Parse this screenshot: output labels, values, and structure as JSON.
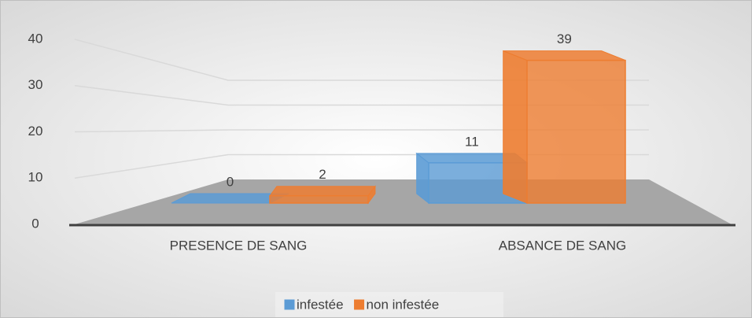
{
  "chart_data": {
    "type": "bar3d",
    "categories": [
      "PRESENCE DE SANG",
      "ABSANCE DE SANG"
    ],
    "series": [
      {
        "name": "infestée",
        "color": "#5b9bd5",
        "values": [
          0,
          11
        ]
      },
      {
        "name": "non infestée",
        "color": "#ed7d31",
        "values": [
          2,
          39
        ]
      }
    ],
    "ylim": [
      0,
      40
    ],
    "yticks": [
      0,
      10,
      20,
      30,
      40
    ],
    "grid": true,
    "legend": "bottom"
  }
}
